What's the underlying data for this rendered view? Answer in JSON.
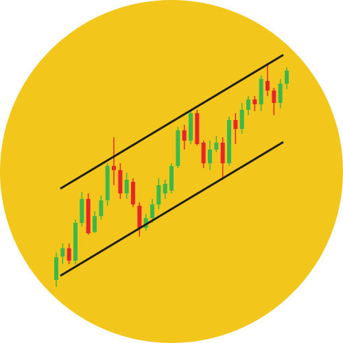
{
  "chart_data": {
    "type": "candlestick",
    "ylim": [
      0,
      500
    ],
    "up_color": "#3cb84a",
    "down_color": "#e8262a",
    "open": [
      92,
      126,
      138,
      120,
      175,
      210,
      162,
      185,
      208,
      258,
      252,
      218,
      235,
      200,
      168,
      182,
      202,
      218,
      222,
      258,
      310,
      295,
      335,
      292,
      262,
      282,
      292,
      262,
      325,
      312,
      340,
      355,
      348,
      382,
      368,
      350,
      378
    ],
    "high": [
      132,
      145,
      145,
      180,
      220,
      218,
      192,
      215,
      262,
      300,
      262,
      248,
      240,
      205,
      188,
      210,
      240,
      238,
      262,
      315,
      318,
      340,
      340,
      295,
      295,
      302,
      300,
      330,
      335,
      350,
      360,
      360,
      390,
      408,
      372,
      385,
      402
    ],
    "low": [
      82,
      115,
      115,
      115,
      170,
      158,
      160,
      180,
      200,
      230,
      210,
      210,
      198,
      155,
      164,
      175,
      195,
      210,
      218,
      255,
      282,
      290,
      288,
      255,
      252,
      278,
      238,
      258,
      290,
      305,
      332,
      338,
      338,
      360,
      332,
      342,
      370
    ],
    "close": [
      125,
      138,
      120,
      175,
      210,
      160,
      185,
      208,
      258,
      252,
      218,
      238,
      202,
      168,
      182,
      202,
      230,
      232,
      258,
      310,
      295,
      335,
      290,
      262,
      282,
      292,
      262,
      325,
      312,
      340,
      355,
      348,
      385,
      368,
      350,
      378,
      397
    ]
  }
}
